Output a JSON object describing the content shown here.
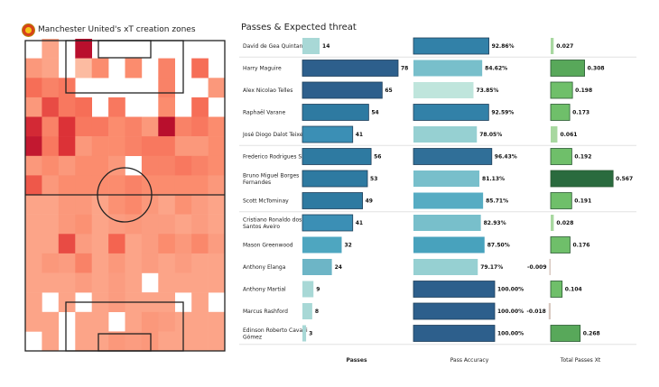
{
  "left_panel": {
    "title": "Manchester United's xT creation zones",
    "logo_icon": "manchester-united-crest-icon"
  },
  "right_panel": {
    "title": "Passes & Expected threat",
    "column_headers": [
      "Passes",
      "Pass Accuracy",
      "Total Passes Xt"
    ]
  },
  "chart_data": [
    {
      "type": "heatmap",
      "title": "Manchester United's xT creation zones",
      "description": "Pitch heatmap, 12 columns x 16 rows, attacking direction upward; intensity 0 (white) to 1 (dark red)",
      "grid_cols": 12,
      "grid_rows": 16,
      "colormap": [
        "#ffffff",
        "#fcbba1",
        "#fb6a4a",
        "#cb181d",
        "#a50f15"
      ],
      "values": [
        [
          0,
          0.3,
          0,
          1.0,
          0,
          0,
          0,
          0,
          0,
          0,
          0,
          0
        ],
        [
          0.35,
          0.3,
          0,
          0.2,
          0.4,
          0,
          0.4,
          0,
          0.45,
          0,
          0.55,
          0
        ],
        [
          0.55,
          0.45,
          0.5,
          0,
          0,
          0,
          0,
          0,
          0.45,
          0,
          0,
          0.35
        ],
        [
          0.35,
          0.7,
          0.5,
          0.55,
          0,
          0.5,
          0,
          0,
          0.4,
          0,
          0.55,
          0
        ],
        [
          0.85,
          0.45,
          0.8,
          0.5,
          0.5,
          0.4,
          0.45,
          0.35,
          1.0,
          0.45,
          0.5,
          0.4
        ],
        [
          0.95,
          0.5,
          0.8,
          0.35,
          0.4,
          0.4,
          0.45,
          0.5,
          0.5,
          0.35,
          0.35,
          0.4
        ],
        [
          0.35,
          0.4,
          0.35,
          0.4,
          0.4,
          0.35,
          0,
          0.45,
          0.45,
          0.5,
          0.45,
          0.4
        ],
        [
          0.65,
          0.35,
          0.4,
          0.4,
          0.4,
          0.4,
          0.45,
          0.4,
          0.4,
          0.4,
          0.4,
          0.35
        ],
        [
          0.3,
          0.3,
          0.35,
          0.35,
          0.3,
          0.38,
          0.42,
          0.35,
          0.3,
          0.38,
          0.33,
          0.3
        ],
        [
          0.3,
          0.3,
          0.35,
          0.38,
          0.3,
          0.33,
          0.35,
          0.33,
          0.33,
          0.3,
          0.33,
          0.3
        ],
        [
          0.3,
          0.3,
          0.7,
          0.33,
          0.3,
          0.6,
          0.3,
          0.33,
          0.4,
          0.35,
          0.42,
          0.33
        ],
        [
          0.3,
          0.35,
          0.33,
          0.45,
          0.3,
          0.35,
          0.3,
          0.33,
          0.3,
          0.33,
          0.3,
          0.3
        ],
        [
          0.3,
          0.3,
          0.3,
          0.33,
          0.3,
          0.33,
          0.3,
          0,
          0.3,
          0.3,
          0.3,
          0.3
        ],
        [
          0.3,
          0,
          0.3,
          0,
          0.3,
          0.33,
          0.3,
          0.3,
          0.3,
          0,
          0.3,
          0
        ],
        [
          0.3,
          0.3,
          0,
          0.3,
          0.3,
          0,
          0.3,
          0.35,
          0.33,
          0.3,
          0.3,
          0.3
        ],
        [
          0,
          0.3,
          0,
          0.3,
          0.3,
          0.35,
          0.33,
          0.35,
          0.3,
          0.3,
          0.3,
          0.3
        ]
      ]
    },
    {
      "type": "bar",
      "title": "Passes & Expected threat",
      "categories": [
        "David de Gea Quintana",
        "Harry  Maguire",
        "Alex Nicolao Telles",
        "Raphaël Varane",
        "José Diogo Dalot Teixeira",
        "Frederico Rodrigues Santos",
        "Bruno Miguel Borges Fernandes",
        "Scott McTominay",
        "Cristiano Ronaldo dos Santos Aveiro",
        "Mason Greenwood",
        "Anthony Elanga",
        "Anthony Martial",
        "Marcus Rashford",
        "Edinson Roberto Cavani Gómez"
      ],
      "group_breaks_after": [
        0,
        4,
        7
      ],
      "series": [
        {
          "name": "Passes",
          "values": [
            14,
            78,
            65,
            54,
            41,
            56,
            53,
            49,
            41,
            32,
            24,
            9,
            8,
            3
          ],
          "labels": [
            "14",
            "78",
            "65",
            "54",
            "41",
            "56",
            "53",
            "49",
            "41",
            "32",
            "24",
            "9",
            "8",
            "3"
          ],
          "xlim": [
            0,
            78
          ]
        },
        {
          "name": "Pass Accuracy",
          "values": [
            92.86,
            84.62,
            73.85,
            92.59,
            78.05,
            96.43,
            81.13,
            85.71,
            82.93,
            87.5,
            79.17,
            100.0,
            100.0,
            100.0
          ],
          "labels": [
            "92.86%",
            "84.62%",
            "73.85%",
            "92.59%",
            "78.05%",
            "96.43%",
            "81.13%",
            "85.71%",
            "82.93%",
            "87.50%",
            "79.17%",
            "100.00%",
            "100.00%",
            "100.00%"
          ],
          "xlim": [
            0,
            100
          ]
        },
        {
          "name": "Total Passes Xt",
          "values": [
            0.027,
            0.308,
            0.198,
            0.173,
            0.061,
            0.192,
            0.567,
            0.191,
            0.028,
            0.176,
            -0.009,
            0.104,
            -0.018,
            0.268
          ],
          "labels": [
            "0.027",
            "0.308",
            "0.198",
            "0.173",
            "0.061",
            "0.192",
            "0.567",
            "0.191",
            "0.028",
            "0.176",
            "-0.009",
            "0.104",
            "-0.018",
            "0.268"
          ],
          "xlim": [
            -0.018,
            0.567
          ]
        }
      ],
      "xlabel": "",
      "ylabel": ""
    }
  ]
}
